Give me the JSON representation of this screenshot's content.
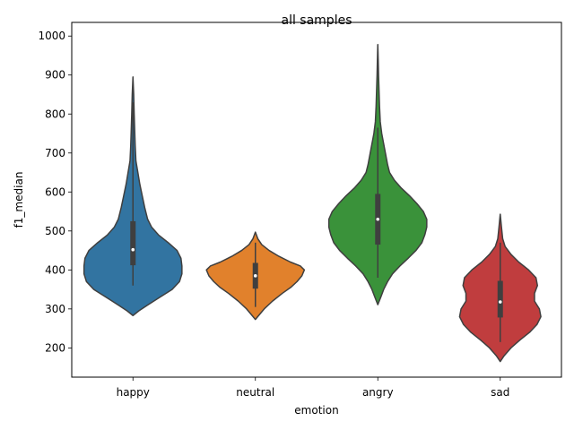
{
  "chart_data": {
    "type": "violin",
    "title": "all samples",
    "xlabel": "emotion",
    "ylabel": "f1_median",
    "ylim": [
      125,
      1035
    ],
    "yticks": [
      200,
      300,
      400,
      500,
      600,
      700,
      800,
      900,
      1000
    ],
    "categories": [
      "happy",
      "neutral",
      "angry",
      "sad"
    ],
    "colors": [
      "#3274a1",
      "#e1812c",
      "#3a923a",
      "#c03d3e"
    ],
    "grid": false,
    "legend": "none",
    "series": [
      {
        "category": "happy",
        "min": 360,
        "q1": 412,
        "median": 452,
        "q3": 525,
        "max": 830,
        "density": [
          [
            283,
            0
          ],
          [
            295,
            0.12
          ],
          [
            310,
            0.3
          ],
          [
            330,
            0.55
          ],
          [
            350,
            0.8
          ],
          [
            370,
            0.95
          ],
          [
            390,
            1.0
          ],
          [
            410,
            1.0
          ],
          [
            430,
            0.98
          ],
          [
            450,
            0.9
          ],
          [
            470,
            0.72
          ],
          [
            490,
            0.52
          ],
          [
            510,
            0.38
          ],
          [
            530,
            0.3
          ],
          [
            560,
            0.24
          ],
          [
            590,
            0.19
          ],
          [
            620,
            0.14
          ],
          [
            650,
            0.1
          ],
          [
            680,
            0.06
          ],
          [
            720,
            0.045
          ],
          [
            760,
            0.035
          ],
          [
            800,
            0.025
          ],
          [
            850,
            0.015
          ],
          [
            895,
            0
          ]
        ]
      },
      {
        "category": "neutral",
        "min": 305,
        "q1": 352,
        "median": 385,
        "q3": 418,
        "max": 470,
        "density": [
          [
            273,
            0
          ],
          [
            285,
            0.08
          ],
          [
            300,
            0.18
          ],
          [
            320,
            0.35
          ],
          [
            340,
            0.55
          ],
          [
            355,
            0.72
          ],
          [
            370,
            0.85
          ],
          [
            385,
            0.95
          ],
          [
            400,
            1.0
          ],
          [
            410,
            0.92
          ],
          [
            420,
            0.72
          ],
          [
            435,
            0.48
          ],
          [
            450,
            0.28
          ],
          [
            465,
            0.13
          ],
          [
            480,
            0.05
          ],
          [
            497,
            0
          ]
        ]
      },
      {
        "category": "angry",
        "min": 380,
        "q1": 465,
        "median": 530,
        "q3": 595,
        "max": 765,
        "density": [
          [
            311,
            0
          ],
          [
            330,
            0.06
          ],
          [
            350,
            0.12
          ],
          [
            370,
            0.2
          ],
          [
            390,
            0.3
          ],
          [
            410,
            0.45
          ],
          [
            430,
            0.62
          ],
          [
            450,
            0.78
          ],
          [
            470,
            0.9
          ],
          [
            490,
            0.96
          ],
          [
            510,
            1.0
          ],
          [
            530,
            1.0
          ],
          [
            550,
            0.93
          ],
          [
            570,
            0.8
          ],
          [
            590,
            0.65
          ],
          [
            610,
            0.48
          ],
          [
            630,
            0.34
          ],
          [
            650,
            0.24
          ],
          [
            670,
            0.2
          ],
          [
            690,
            0.17
          ],
          [
            710,
            0.14
          ],
          [
            730,
            0.11
          ],
          [
            750,
            0.08
          ],
          [
            780,
            0.05
          ],
          [
            820,
            0.035
          ],
          [
            860,
            0.025
          ],
          [
            900,
            0.015
          ],
          [
            940,
            0.008
          ],
          [
            978,
            0
          ]
        ]
      },
      {
        "category": "sad",
        "min": 215,
        "q1": 278,
        "median": 318,
        "q3": 372,
        "max": 470,
        "density": [
          [
            165,
            0
          ],
          [
            180,
            0.08
          ],
          [
            200,
            0.22
          ],
          [
            220,
            0.4
          ],
          [
            240,
            0.6
          ],
          [
            260,
            0.75
          ],
          [
            280,
            0.83
          ],
          [
            300,
            0.8
          ],
          [
            320,
            0.7
          ],
          [
            340,
            0.7
          ],
          [
            360,
            0.76
          ],
          [
            380,
            0.73
          ],
          [
            400,
            0.58
          ],
          [
            420,
            0.38
          ],
          [
            440,
            0.22
          ],
          [
            460,
            0.1
          ],
          [
            480,
            0.05
          ],
          [
            510,
            0.025
          ],
          [
            543,
            0
          ]
        ]
      }
    ]
  }
}
